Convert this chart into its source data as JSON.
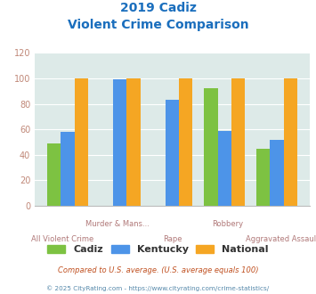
{
  "title_line1": "2019 Cadiz",
  "title_line2": "Violent Crime Comparison",
  "categories": [
    "All Violent Crime",
    "Murder & Mans...",
    "Rape",
    "Robbery",
    "Aggravated Assault"
  ],
  "top_labels": [
    "",
    "Murder & Mans...",
    "",
    "Robbery",
    ""
  ],
  "bottom_labels": [
    "All Violent Crime",
    "",
    "Rape",
    "",
    "Aggravated Assault"
  ],
  "cadiz": [
    49,
    0,
    0,
    92,
    45
  ],
  "kentucky": [
    58,
    99,
    83,
    59,
    52
  ],
  "national": [
    100,
    100,
    100,
    100,
    100
  ],
  "color_cadiz": "#7dc242",
  "color_kentucky": "#4d94e8",
  "color_national": "#f5a623",
  "ylim": [
    0,
    120
  ],
  "yticks": [
    0,
    20,
    40,
    60,
    80,
    100,
    120
  ],
  "bg_color": "#ddeae8",
  "title_color": "#1a6ebd",
  "tick_color": "#c08878",
  "label_color": "#b07878",
  "legend_labels": [
    "Cadiz",
    "Kentucky",
    "National"
  ],
  "legend_label_color": "#333333",
  "footnote1": "Compared to U.S. average. (U.S. average equals 100)",
  "footnote2": "© 2025 CityRating.com - https://www.cityrating.com/crime-statistics/",
  "footnote1_color": "#c05020",
  "footnote2_color": "#5588aa"
}
